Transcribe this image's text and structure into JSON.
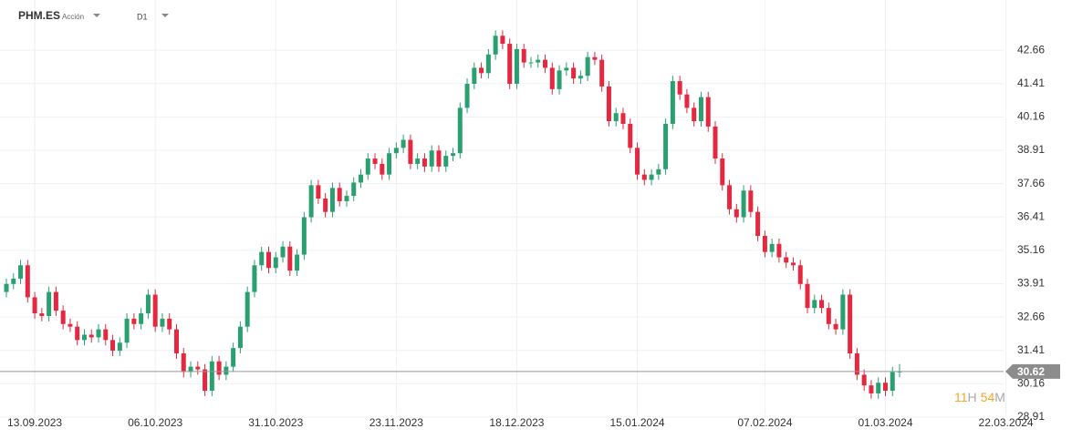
{
  "chart_data": {
    "type": "candlestick",
    "symbol": "PHM.ES",
    "instrument_type": "Acción",
    "timeframe": "D1",
    "last_price": 30.62,
    "countdown_hours": "11",
    "countdown_hours_unit": "H",
    "countdown_minutes": "54",
    "countdown_minutes_unit": "M",
    "colors": {
      "up": "#2aa070",
      "down": "#e5283f"
    },
    "grid": true,
    "ylim": [
      28.74,
      44.54
    ],
    "yticks": [
      28.91,
      30.16,
      31.41,
      32.66,
      33.91,
      35.16,
      36.41,
      37.66,
      38.91,
      40.16,
      41.41,
      42.66
    ],
    "categories": [
      null,
      null,
      null,
      null,
      "13.09.2023",
      null,
      null,
      null,
      null,
      null,
      null,
      null,
      null,
      null,
      null,
      null,
      null,
      null,
      null,
      null,
      null,
      "06.10.2023",
      null,
      null,
      null,
      null,
      null,
      null,
      null,
      null,
      null,
      null,
      null,
      null,
      null,
      null,
      null,
      null,
      "31.10.2023",
      null,
      null,
      null,
      null,
      null,
      null,
      null,
      null,
      null,
      null,
      null,
      null,
      null,
      null,
      null,
      null,
      "23.11.2023",
      null,
      null,
      null,
      null,
      null,
      null,
      null,
      null,
      null,
      null,
      null,
      null,
      null,
      null,
      null,
      null,
      "18.12.2023",
      null,
      null,
      null,
      null,
      null,
      null,
      null,
      null,
      null,
      null,
      null,
      null,
      null,
      null,
      null,
      null,
      "15.01.2024",
      null,
      null,
      null,
      null,
      null,
      null,
      null,
      null,
      null,
      null,
      null,
      null,
      null,
      null,
      null,
      null,
      null,
      "07.02.2024",
      null,
      null,
      null,
      null,
      null,
      null,
      null,
      null,
      null,
      null,
      null,
      null,
      null,
      null,
      null,
      null,
      "01.03.2024",
      null,
      null,
      null,
      null,
      null,
      null,
      null,
      null,
      null,
      null,
      null,
      null,
      null,
      null,
      null,
      null,
      "22.03.2024"
    ],
    "open": [
      33.6,
      33.9,
      34.1,
      34.6,
      33.4,
      32.8,
      32.7,
      33.6,
      32.9,
      32.4,
      32.3,
      31.8,
      32.0,
      31.9,
      32.2,
      31.8,
      31.4,
      31.7,
      32.6,
      32.4,
      32.8,
      33.5,
      32.3,
      32.6,
      32.2,
      31.3,
      30.6,
      30.8,
      30.7,
      29.9,
      31.0,
      30.5,
      30.8,
      31.5,
      32.3,
      33.6,
      34.6,
      35.1,
      34.5,
      34.9,
      35.3,
      34.4,
      35.0,
      36.4,
      37.6,
      37.1,
      36.6,
      37.5,
      37.0,
      37.2,
      37.7,
      38.0,
      38.6,
      38.4,
      38.0,
      38.8,
      39.0,
      39.3,
      38.4,
      38.6,
      38.3,
      38.9,
      38.3,
      38.7,
      38.8,
      40.5,
      41.4,
      42.0,
      41.8,
      42.5,
      43.2,
      42.9,
      41.4,
      42.7,
      42.2,
      42.2,
      42.3,
      42.0,
      41.2,
      41.9,
      42.0,
      41.6,
      41.7,
      42.4,
      42.3,
      41.3,
      40.0,
      40.3,
      39.9,
      39.0,
      38.0,
      37.8,
      38.0,
      38.2,
      39.9,
      41.5,
      41.0,
      40.5,
      40.0,
      40.9,
      39.8,
      38.6,
      37.6,
      36.7,
      36.4,
      37.4,
      36.6,
      35.7,
      35.1,
      35.4,
      34.9,
      34.7,
      34.6,
      33.9,
      33.0,
      33.3,
      33.0,
      32.4,
      32.2,
      33.5,
      31.3,
      30.5,
      30.1,
      29.8,
      30.2,
      29.9,
      30.6,
      null,
      null,
      null,
      null,
      null,
      null,
      null,
      null,
      null,
      null,
      null,
      null,
      null,
      null,
      null
    ],
    "high": [
      34.1,
      34.3,
      34.8,
      34.8,
      33.6,
      33.0,
      33.8,
      33.8,
      33.1,
      32.6,
      32.5,
      32.2,
      32.2,
      32.4,
      32.4,
      32.0,
      31.9,
      32.8,
      32.8,
      33.0,
      33.7,
      33.7,
      32.8,
      32.8,
      32.4,
      31.5,
      31.0,
      31.0,
      30.9,
      31.2,
      31.2,
      31.0,
      31.7,
      32.5,
      33.8,
      34.8,
      35.3,
      35.3,
      35.1,
      35.5,
      35.5,
      35.2,
      36.6,
      37.8,
      37.8,
      37.3,
      37.7,
      37.7,
      37.4,
      37.9,
      38.2,
      38.8,
      38.8,
      38.6,
      39.0,
      39.2,
      39.5,
      39.5,
      38.8,
      38.8,
      39.1,
      39.1,
      38.9,
      39.0,
      40.7,
      41.6,
      42.2,
      42.2,
      42.7,
      43.4,
      43.4,
      43.1,
      42.9,
      42.9,
      42.4,
      42.5,
      42.5,
      42.2,
      42.1,
      42.2,
      42.2,
      41.9,
      42.6,
      42.6,
      42.5,
      41.5,
      40.5,
      40.5,
      40.1,
      39.2,
      38.2,
      38.2,
      38.4,
      40.1,
      41.7,
      41.7,
      41.2,
      40.7,
      41.1,
      41.1,
      40.0,
      38.8,
      37.8,
      36.9,
      37.6,
      37.6,
      36.8,
      35.9,
      35.6,
      35.6,
      35.1,
      34.9,
      34.8,
      34.1,
      33.5,
      33.5,
      33.2,
      32.6,
      33.7,
      33.7,
      31.5,
      30.7,
      30.3,
      30.4,
      30.4,
      30.8,
      30.9,
      null,
      null,
      null,
      null,
      null,
      null,
      null,
      null,
      null,
      null,
      null,
      null,
      null,
      null,
      null
    ],
    "low": [
      33.4,
      33.7,
      33.9,
      33.2,
      32.6,
      32.5,
      32.5,
      32.7,
      32.2,
      32.1,
      31.6,
      31.6,
      31.7,
      31.7,
      31.6,
      31.2,
      31.2,
      31.5,
      32.2,
      32.2,
      32.6,
      32.1,
      32.1,
      32.0,
      31.1,
      30.4,
      30.4,
      30.5,
      29.7,
      29.7,
      30.3,
      30.3,
      30.6,
      31.3,
      32.1,
      33.4,
      34.4,
      34.3,
      34.3,
      34.7,
      34.2,
      34.2,
      34.8,
      36.2,
      36.9,
      36.4,
      36.4,
      36.8,
      36.8,
      37.0,
      37.5,
      37.8,
      38.2,
      37.8,
      37.8,
      38.6,
      38.8,
      38.2,
      38.2,
      38.1,
      38.1,
      38.1,
      38.1,
      38.5,
      38.6,
      40.3,
      41.2,
      41.6,
      41.6,
      42.3,
      42.7,
      41.2,
      41.2,
      42.0,
      42.0,
      42.0,
      41.8,
      41.0,
      41.0,
      41.7,
      41.4,
      41.4,
      41.5,
      42.1,
      41.1,
      39.8,
      39.8,
      39.7,
      38.8,
      37.8,
      37.6,
      37.6,
      37.8,
      38.0,
      39.7,
      40.8,
      40.3,
      39.8,
      39.8,
      39.6,
      38.4,
      37.4,
      36.5,
      36.2,
      36.2,
      36.4,
      35.5,
      34.9,
      34.9,
      34.7,
      34.5,
      34.4,
      33.7,
      32.8,
      32.8,
      32.8,
      32.2,
      32.0,
      32.0,
      31.1,
      30.3,
      29.9,
      29.6,
      29.6,
      29.7,
      29.7,
      30.4,
      null,
      null,
      null,
      null,
      null,
      null,
      null,
      null,
      null,
      null,
      null,
      null,
      null,
      null,
      null
    ],
    "close": [
      33.9,
      34.1,
      34.6,
      33.4,
      32.8,
      32.7,
      33.6,
      32.9,
      32.4,
      32.3,
      31.8,
      32.0,
      31.9,
      32.2,
      31.8,
      31.4,
      31.7,
      32.6,
      32.4,
      32.8,
      33.5,
      32.3,
      32.6,
      32.2,
      31.3,
      30.6,
      30.8,
      30.7,
      29.9,
      31.0,
      30.5,
      30.8,
      31.5,
      32.3,
      33.6,
      34.6,
      35.1,
      34.5,
      34.9,
      35.3,
      34.4,
      35.0,
      36.4,
      37.6,
      37.1,
      36.6,
      37.5,
      37.0,
      37.2,
      37.7,
      38.0,
      38.6,
      38.4,
      38.0,
      38.8,
      39.0,
      39.3,
      38.4,
      38.6,
      38.3,
      38.9,
      38.3,
      38.7,
      38.8,
      40.5,
      41.4,
      42.0,
      41.8,
      42.5,
      43.2,
      42.9,
      41.4,
      42.7,
      42.2,
      42.2,
      42.3,
      42.0,
      41.2,
      41.9,
      42.0,
      41.6,
      41.7,
      42.4,
      42.3,
      41.3,
      40.0,
      40.3,
      39.9,
      39.0,
      38.0,
      37.8,
      38.0,
      38.2,
      39.9,
      41.5,
      41.0,
      40.5,
      40.0,
      40.9,
      39.8,
      38.6,
      37.6,
      36.7,
      36.4,
      37.4,
      36.6,
      35.7,
      35.1,
      35.4,
      34.9,
      34.7,
      34.6,
      33.9,
      33.0,
      33.3,
      33.0,
      32.4,
      32.2,
      33.5,
      31.3,
      30.5,
      30.1,
      29.8,
      30.2,
      29.9,
      30.6,
      30.62,
      null,
      null,
      null,
      null,
      null,
      null,
      null,
      null,
      null,
      null,
      null,
      null,
      null,
      null,
      null
    ]
  }
}
